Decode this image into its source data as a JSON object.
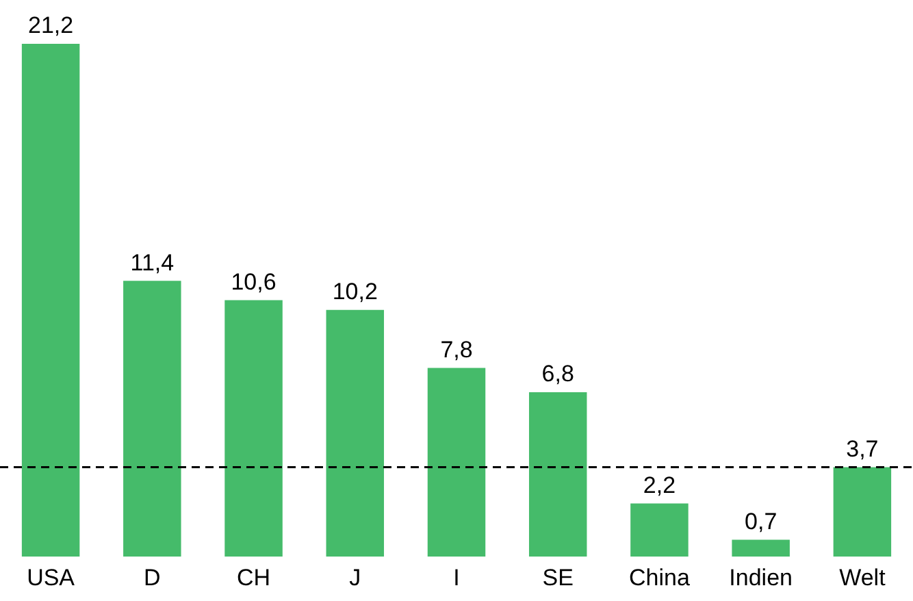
{
  "chart_data": {
    "type": "bar",
    "categories": [
      "USA",
      "D",
      "CH",
      "J",
      "I",
      "SE",
      "China",
      "Indien",
      "Welt"
    ],
    "values": [
      21.2,
      11.4,
      10.6,
      10.2,
      7.8,
      6.8,
      2.2,
      0.7,
      3.7
    ],
    "value_labels": [
      "21,2",
      "11,4",
      "10,6",
      "10,2",
      "7,8",
      "6,8",
      "2,2",
      "0,7",
      "3,7"
    ],
    "color": "#45bb6a",
    "ylim": [
      0,
      21.2
    ],
    "tick_labels": "x",
    "grid": false,
    "legend": false,
    "ref_lines": [
      {
        "axis": "y",
        "value": 3.7,
        "color": "#000000",
        "line_style": "dashed"
      }
    ]
  }
}
